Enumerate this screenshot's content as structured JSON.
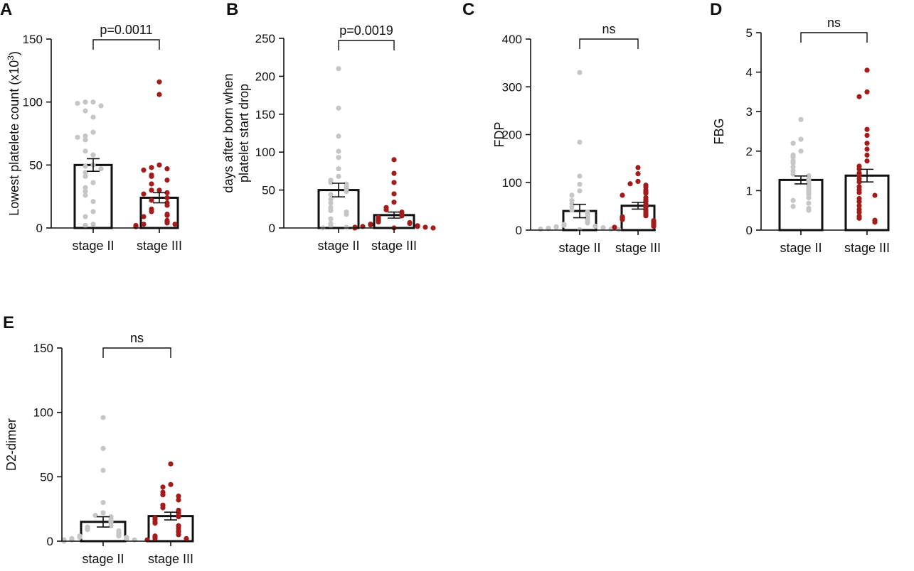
{
  "colors": {
    "stage_II": "#c6c6c6",
    "stage_III": "#a21c1c",
    "axis": "#111111"
  },
  "chart_data": [
    {
      "panel": "A",
      "type": "bar-scatter",
      "categories": [
        "stage II",
        "stage III"
      ],
      "ylabel_parts": [
        "Lowest platelete count (x10",
        "3",
        ")"
      ],
      "ylim": [
        0,
        150
      ],
      "yticks": [
        0,
        50,
        100,
        150
      ],
      "ytick_labels": [
        "0",
        "50",
        "100",
        "150"
      ],
      "significance": "p=0.0011",
      "bars": [
        {
          "category": "stage II",
          "mean": 50,
          "sem": 5
        },
        {
          "category": "stage III",
          "mean": 24,
          "sem": 4
        }
      ],
      "points": [
        [
          100,
          100,
          97,
          99,
          93,
          88,
          76,
          73,
          70,
          72,
          58,
          61,
          50,
          49,
          47,
          44,
          41,
          36,
          32,
          29,
          26,
          21,
          13,
          9,
          3,
          2
        ],
        [
          116,
          106,
          50,
          48,
          47,
          46,
          42,
          41,
          38,
          35,
          30,
          30,
          28,
          27,
          24,
          22,
          20,
          18,
          15,
          13,
          11,
          10,
          9,
          6,
          5,
          4,
          3,
          3,
          2,
          1
        ]
      ]
    },
    {
      "panel": "B",
      "type": "bar-scatter",
      "categories": [
        "stage II",
        "stage III"
      ],
      "ylabel_lines": [
        "days after born when",
        "platelet start drop"
      ],
      "ylim": [
        0,
        250
      ],
      "yticks": [
        0,
        50,
        100,
        150,
        200,
        250
      ],
      "ytick_labels": [
        "0",
        "50",
        "100",
        "150",
        "200",
        "250"
      ],
      "significance": "p=0.0019",
      "bars": [
        {
          "category": "stage II",
          "mean": 50,
          "sem": 9
        },
        {
          "category": "stage III",
          "mean": 17,
          "sem": 4
        }
      ],
      "points": [
        [
          210,
          158,
          121,
          101,
          93,
          78,
          68,
          63,
          60,
          58,
          55,
          52,
          48,
          44,
          38,
          33,
          27,
          23,
          21,
          18,
          12,
          6,
          3,
          1,
          0,
          0
        ],
        [
          90,
          72,
          60,
          45,
          34,
          27,
          24,
          21,
          18,
          16,
          14,
          12,
          10,
          8,
          7,
          6,
          5,
          4,
          3,
          2,
          2,
          1,
          1,
          0,
          0,
          0
        ]
      ]
    },
    {
      "panel": "C",
      "type": "bar-scatter",
      "categories": [
        "stage II",
        "stage III"
      ],
      "ylabel": "FDP",
      "ylim": [
        0,
        400
      ],
      "yticks": [
        0,
        100,
        200,
        300,
        400
      ],
      "ytick_labels": [
        "0",
        "100",
        "200",
        "300",
        "400"
      ],
      "significance": "ns",
      "bars": [
        {
          "category": "stage II",
          "mean": 40,
          "sem": 14
        },
        {
          "category": "stage III",
          "mean": 51,
          "sem": 7
        }
      ],
      "points": [
        [
          330,
          184,
          113,
          96,
          82,
          73,
          62,
          55,
          49,
          42,
          38,
          33,
          27,
          22,
          18,
          15,
          12,
          10,
          8,
          7,
          6,
          5,
          4,
          3,
          2,
          2,
          1,
          1
        ],
        [
          131,
          118,
          102,
          97,
          94,
          90,
          84,
          80,
          77,
          73,
          68,
          64,
          60,
          55,
          51,
          47,
          42,
          38,
          34,
          30,
          28,
          25,
          22,
          20,
          17,
          14,
          12,
          10,
          8,
          6
        ]
      ]
    },
    {
      "panel": "D",
      "type": "bar-scatter",
      "categories": [
        "stage II",
        "stage III"
      ],
      "ylabel": "FBG",
      "ylim": [
        0,
        5
      ],
      "yticks": [
        0,
        1,
        2,
        3,
        4,
        5
      ],
      "ytick_labels": [
        "0",
        "1",
        "2",
        "3",
        "4",
        "5"
      ],
      "significance": "ns",
      "bars": [
        {
          "category": "stage II",
          "mean": 1.27,
          "sem": 0.1
        },
        {
          "category": "stage III",
          "mean": 1.38,
          "sem": 0.16
        }
      ],
      "points": [
        [
          2.8,
          2.3,
          2.2,
          2.0,
          1.9,
          1.85,
          1.75,
          1.7,
          1.6,
          1.5,
          1.42,
          1.38,
          1.3,
          1.25,
          1.2,
          1.15,
          1.1,
          1.05,
          1.0,
          0.95,
          0.9,
          0.82,
          0.75,
          0.68,
          0.6,
          0.55,
          0.5
        ],
        [
          4.05,
          3.5,
          3.38,
          2.55,
          2.4,
          2.2,
          2.05,
          1.9,
          1.75,
          1.62,
          1.55,
          1.45,
          1.4,
          1.3,
          1.22,
          1.1,
          1.02,
          0.95,
          0.88,
          0.8,
          0.72,
          0.62,
          0.52,
          0.45,
          0.35,
          0.3,
          0.25,
          0.2
        ]
      ]
    },
    {
      "panel": "E",
      "type": "bar-scatter",
      "categories": [
        "stage II",
        "stage III"
      ],
      "ylabel": "D2-dimer",
      "ylim": [
        0,
        150
      ],
      "yticks": [
        0,
        50,
        100,
        150
      ],
      "ytick_labels": [
        "0",
        "50",
        "100",
        "150"
      ],
      "significance": "ns",
      "bars": [
        {
          "category": "stage II",
          "mean": 15,
          "sem": 4
        },
        {
          "category": "stage III",
          "mean": 19.5,
          "sem": 3
        }
      ],
      "points": [
        [
          96,
          72,
          55,
          30,
          22,
          20,
          19,
          17,
          15,
          14,
          12,
          11,
          10,
          9,
          8,
          7,
          6,
          5,
          4,
          4,
          3,
          3,
          2,
          2,
          1,
          1,
          1,
          0
        ],
        [
          60,
          44,
          42,
          38,
          36,
          35,
          32,
          28,
          26,
          24,
          22,
          20,
          19,
          18,
          17,
          15,
          14,
          12,
          10,
          8,
          7,
          5,
          4,
          3,
          2,
          2,
          1
        ]
      ]
    }
  ]
}
